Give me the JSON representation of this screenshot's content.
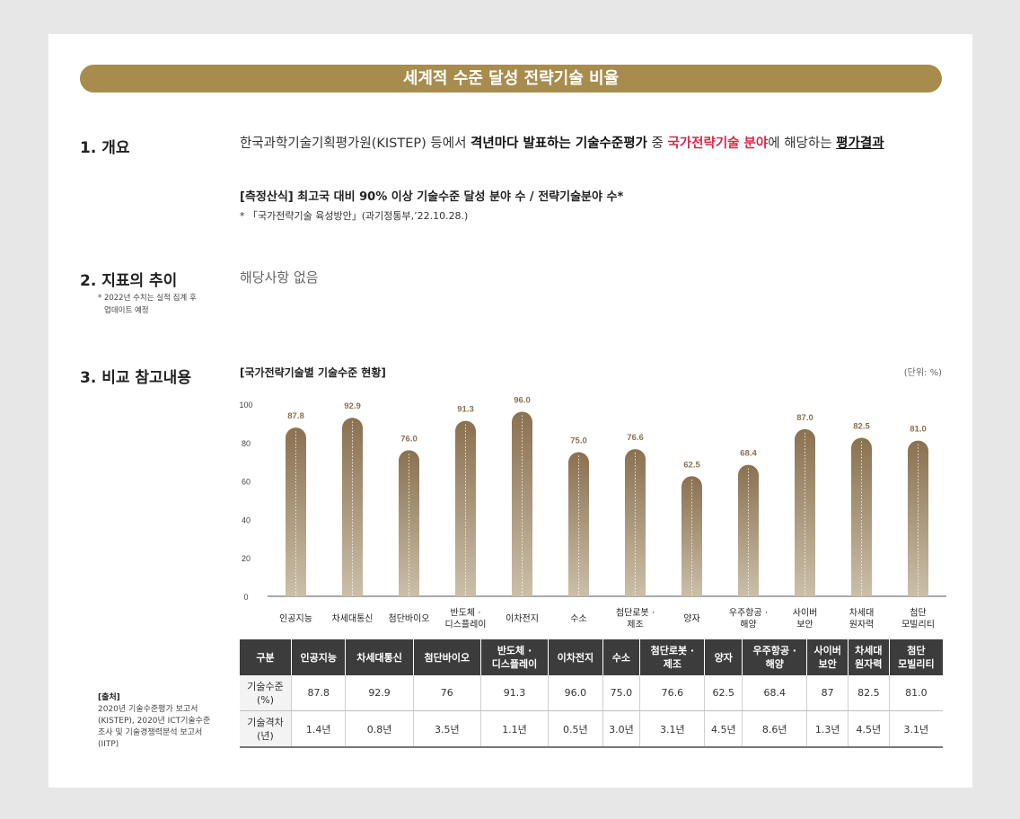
{
  "title": "세계적 수준 달성 전략기술 비율",
  "sections": {
    "overview": {
      "heading": "1. 개요",
      "text1": "한국과학기술기획평가원(KISTEP) 등에서 ",
      "bold1": "격년마다 발표하는 기술수준평가",
      "text2": " 중 ",
      "red1": "국가전략기술 분야",
      "text3": "에 해당하는 ",
      "underline1": "평가결과",
      "formula": "[측정산식] 최고국 대비 90% 이상 기술수준 달성 분야 수 / 전략기술분야 수*",
      "source": "* 「국가전략기술 육성방안」(과기정통부,’22.10.28.)"
    },
    "trend": {
      "heading": "2. 지표의 추이",
      "note_line1": "* 2022년 수치는 실적 집계 후",
      "note_line2": "업데이트 예정",
      "value": "해당사항 없음"
    },
    "comparison": {
      "heading": "3. 비교 참고내용",
      "chart_title": "[국가전략기술별 기술수준 현황]",
      "unit": "(단위: %)"
    }
  },
  "chart_data": {
    "type": "bar",
    "title": "[국가전략기술별 기술수준 현황]",
    "categories": [
      "인공지능",
      "차세대통신",
      "첨단바이오",
      "반도체 · 디스플레이",
      "이차전지",
      "수소",
      "첨단로봇 · 제조",
      "양자",
      "우주항공 · 해양",
      "사이버 보안",
      "차세대 원자력",
      "첨단 모빌리티"
    ],
    "category_lines": [
      [
        "인공지능"
      ],
      [
        "차세대통신"
      ],
      [
        "첨단바이오"
      ],
      [
        "반도체 ·",
        "디스플레이"
      ],
      [
        "이차전지"
      ],
      [
        "수소"
      ],
      [
        "첨단로봇 ·",
        "제조"
      ],
      [
        "양자"
      ],
      [
        "우주항공 ·",
        "해양"
      ],
      [
        "사이버",
        "보안"
      ],
      [
        "차세대",
        "원자력"
      ],
      [
        "첨단",
        "모빌리티"
      ]
    ],
    "values": [
      87.8,
      92.9,
      76.0,
      91.3,
      96.0,
      75.0,
      76.6,
      62.5,
      68.4,
      87.0,
      82.5,
      81.0
    ],
    "value_labels": [
      "87.8",
      "92.9",
      "76.0",
      "91.3",
      "96.0",
      "75.0",
      "76.6",
      "62.5",
      "68.4",
      "87.0",
      "82.5",
      "81.0"
    ],
    "yticks": [
      "0",
      "20",
      "40",
      "60",
      "80",
      "100"
    ],
    "ylim": [
      0,
      100
    ],
    "unit": "(단위: %)",
    "grid": false,
    "bar_color": "#8a7150"
  },
  "table": {
    "header_label": "구분",
    "columns": [
      [
        "인공지능"
      ],
      [
        "차세대통신"
      ],
      [
        "첨단바이오"
      ],
      [
        "반도체 ·",
        "디스플레이"
      ],
      [
        "이차전지"
      ],
      [
        "수소"
      ],
      [
        "첨단로봇 ·",
        "제조"
      ],
      [
        "양자"
      ],
      [
        "우주항공 ·",
        "해양"
      ],
      [
        "사이버",
        "보안"
      ],
      [
        "차세대",
        "원자력"
      ],
      [
        "첨단",
        "모빌리티"
      ]
    ],
    "rows": [
      {
        "label": [
          "기술수준",
          "(%)"
        ],
        "values": [
          "87.8",
          "92.9",
          "76",
          "91.3",
          "96.0",
          "75.0",
          "76.6",
          "62.5",
          "68.4",
          "87",
          "82.5",
          "81.0"
        ]
      },
      {
        "label": [
          "기술격차",
          "(년)"
        ],
        "values": [
          "1.4년",
          "0.8년",
          "3.5년",
          "1.1년",
          "0.5년",
          "3.0년",
          "3.1년",
          "4.5년",
          "8.6년",
          "1.3년",
          "4.5년",
          "3.1년"
        ]
      }
    ]
  },
  "source_note": {
    "label": "[출처]",
    "lines": [
      "2020년 기술수준평가 보고서",
      "(KISTEP), 2020년 ICT기술수준",
      "조사 및 기술경쟁력분석 보고서",
      "(IITP)"
    ]
  }
}
